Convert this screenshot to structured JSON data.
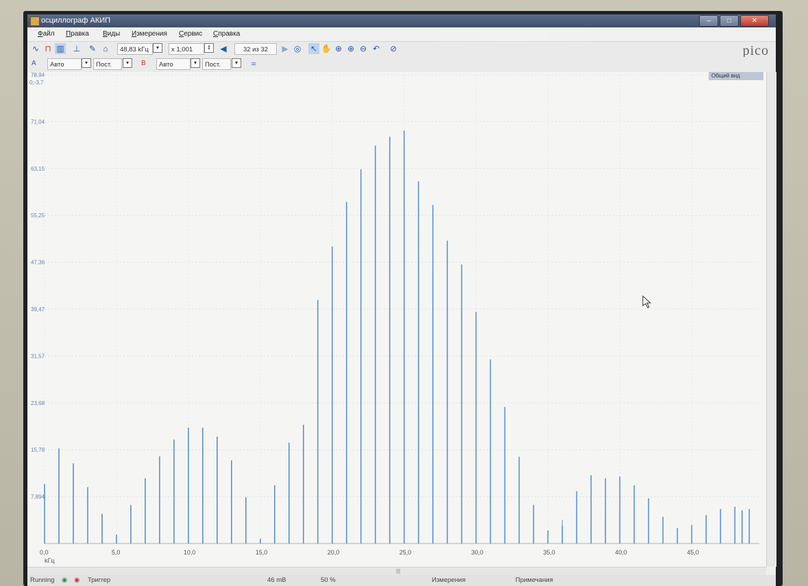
{
  "window": {
    "title": "осциллограф АКИП"
  },
  "menu": {
    "items": [
      "Файл",
      "Правка",
      "Виды",
      "Измерения",
      "Сервис",
      "Справка"
    ]
  },
  "toolbar": {
    "frequency": "48,83 kГц",
    "zoom": "x 1,001",
    "buffer": "32 из 32",
    "logo": "pico"
  },
  "channels": {
    "a_label": "A",
    "a_range": "Авто",
    "a_coupling": "Пост.",
    "b_label": "B",
    "b_range": "Авто",
    "b_coupling": "Пост."
  },
  "view_tag": "Общий вид",
  "status": {
    "state": "Running",
    "trigger_label": "Триггер",
    "level": "46 mB",
    "percent": "50 %",
    "measurements": "Измерения",
    "notes": "Примечания"
  },
  "chart_data": {
    "type": "bar",
    "xlabel": "kГц",
    "xlim": [
      0,
      49.7
    ],
    "ylim": [
      0,
      78.94
    ],
    "x_ticks": [
      "0,0",
      "5,0",
      "10,0",
      "15,0",
      "20,0",
      "25,0",
      "30,0",
      "35,0",
      "40,0",
      "45,0"
    ],
    "y_ticks": [
      "7,894",
      "15,78",
      "23,68",
      "31,57",
      "39,47",
      "47,36",
      "55,25",
      "63,15",
      "71,04",
      "78,94"
    ],
    "y_top_extra": "0;-3,7",
    "color": "#5a8fd0",
    "spectrum": {
      "x": [
        0,
        1,
        2,
        3,
        4,
        5,
        6,
        7,
        8,
        9,
        10,
        11,
        12,
        13,
        14,
        15,
        16,
        17,
        18,
        19,
        20,
        21,
        22,
        23,
        24,
        25,
        26,
        27,
        28,
        29,
        30,
        31,
        32,
        33,
        34,
        35,
        36,
        37,
        38,
        39,
        40,
        41,
        42,
        43,
        44,
        45,
        46,
        47,
        48,
        48.5,
        49
      ],
      "y": [
        10,
        16,
        13.5,
        9.5,
        5,
        1.5,
        6.5,
        11,
        14.7,
        17.5,
        19.5,
        19.5,
        18,
        14,
        7.8,
        0.8,
        9.8,
        17,
        20,
        41,
        50,
        57.5,
        63,
        67,
        68.5,
        69.5,
        61,
        57,
        51,
        47,
        39,
        31,
        23,
        14.6,
        6.5,
        2.2,
        3,
        8.8,
        11.5,
        11,
        11.3,
        9.8,
        7.6,
        4.5,
        2.6,
        3.1,
        4.8,
        5.8,
        6.2,
        5.6,
        5.8
      ]
    },
    "spectrum_secondary": {
      "x": [
        21,
        22,
        25,
        26,
        27,
        28,
        29,
        37,
        38,
        39,
        40,
        41,
        48
      ],
      "y": [
        46,
        50,
        53,
        57,
        49,
        45,
        40,
        4,
        5,
        3,
        5,
        5,
        4
      ]
    }
  }
}
